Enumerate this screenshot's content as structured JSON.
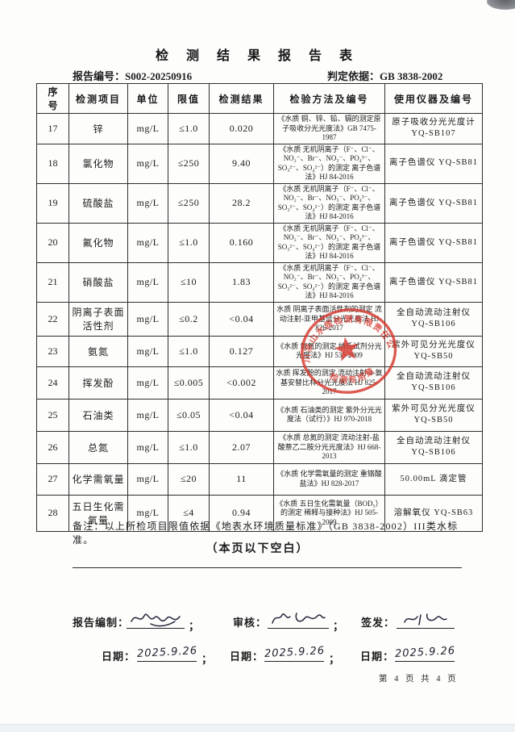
{
  "page": {
    "title": "检 测 结 果 报 告 表",
    "report_no_label": "报告编号：",
    "report_no": "S002-20250916",
    "basis_label": "判定依据：",
    "basis": "GB 3838-2002",
    "note": "备注：以上所检项目限值依据《地表水环境质量标准》（GB 3838-2002）III类水标准。",
    "blank_note": "（本页以下空白）",
    "footer_page": "第 4 页 共 4 页"
  },
  "table": {
    "headers": [
      "序号",
      "检测项目",
      "单位",
      "限值",
      "检测结果",
      "检验方法及编号",
      "使用仪器及编号"
    ],
    "rows": [
      {
        "no": "17",
        "item": "锌",
        "unit": "mg/L",
        "limit": "≤1.0",
        "result": "0.020",
        "method": "《水质 铜、锌、铅、镉的测定原子吸收分光光度法》GB 7475-1987",
        "instrument": "原子吸收分光光度计 YQ-SB107"
      },
      {
        "no": "18",
        "item": "氯化物",
        "unit": "mg/L",
        "limit": "≤250",
        "result": "9.40",
        "method": "《水质 无机阴离子（F⁻、Cl⁻、NO₂⁻、Br⁻、NO₃⁻、PO₄³⁻、SO₃²⁻、SO₄²⁻）的测定 离子色谱法》HJ 84-2016",
        "instrument": "离子色谱仪 YQ-SB81"
      },
      {
        "no": "19",
        "item": "硫酸盐",
        "unit": "mg/L",
        "limit": "≤250",
        "result": "28.2",
        "method": "《水质 无机阴离子（F⁻、Cl⁻、NO₂⁻、Br⁻、NO₃⁻、PO₄³⁻、SO₃²⁻、SO₄²⁻）的测定 离子色谱法》HJ 84-2016",
        "instrument": "离子色谱仪 YQ-SB81"
      },
      {
        "no": "20",
        "item": "氟化物",
        "unit": "mg/L",
        "limit": "≤1.0",
        "result": "0.160",
        "method": "《水质 无机阴离子（F⁻、Cl⁻、NO₂⁻、Br⁻、NO₃⁻、PO₄³⁻、SO₃²⁻、SO₄²⁻）的测定 离子色谱法》HJ 84-2016",
        "instrument": "离子色谱仪 YQ-SB81"
      },
      {
        "no": "21",
        "item": "硝酸盐",
        "unit": "mg/L",
        "limit": "≤10",
        "result": "1.83",
        "method": "《水质 无机阴离子（F⁻、Cl⁻、NO₂⁻、Br⁻、NO₃⁻、PO₄³⁻、SO₃²⁻、SO₄²⁻）的测定 离子色谱法》HJ 84-2016",
        "instrument": "离子色谱仪 YQ-SB81"
      },
      {
        "no": "22",
        "item": "阴离子表面活性剂",
        "unit": "mg/L",
        "limit": "≤0.2",
        "result": "<0.04",
        "method": "水质 阴离子表面活性剂的测定 流动注射-亚甲基蓝分光光度法 HJ 826-2017",
        "instrument": "全自动流动注射仪 YQ-SB106"
      },
      {
        "no": "23",
        "item": "氨氮",
        "unit": "mg/L",
        "limit": "≤1.0",
        "result": "0.127",
        "method": "《水质 氨氮的测定 纳氏试剂分光光度法》HJ 535-2009",
        "instrument": "紫外可见分光光度仪 YQ-SB50"
      },
      {
        "no": "24",
        "item": "挥发酚",
        "unit": "mg/L",
        "limit": "≤0.005",
        "result": "<0.002",
        "method": "水质 挥发酚的测定 流动注射-4-氨基安替比林分光光度法 HJ 825-2017",
        "instrument": "全自动流动注射仪 YQ-SB106"
      },
      {
        "no": "25",
        "item": "石油类",
        "unit": "mg/L",
        "limit": "≤0.05",
        "result": "<0.04",
        "method": "《水质 石油类的测定 紫外分光光度法（试行）》HJ 970-2018",
        "instrument": "紫外可见分光光度仪 YQ-SB50"
      },
      {
        "no": "26",
        "item": "总氮",
        "unit": "mg/L",
        "limit": "≤1.0",
        "result": "2.07",
        "method": "《水质 总氮的测定 流动注射-盐酸萘乙二胺分光光度法》HJ 668-2013",
        "instrument": "全自动流动注射仪 YQ-SB106"
      },
      {
        "no": "27",
        "item": "化学需氧量",
        "unit": "mg/L",
        "limit": "≤20",
        "result": "11",
        "method": "《水质 化学需氧量的测定 重铬酸盐法》HJ 828-2017",
        "instrument": "50.00mL 滴定管"
      },
      {
        "no": "28",
        "item": "五日生化需氧量",
        "unit": "mg/L",
        "limit": "≤4",
        "result": "0.94",
        "method": "《水质 五日生化需氧量（BOD₅）的测定 稀释与接种法》HJ 505-2009",
        "instrument": "溶解氧仪 YQ-SB63"
      }
    ]
  },
  "signatures": {
    "prepared_label": "报告编制：",
    "reviewed_label": "审核：",
    "issued_label": "签发：",
    "date_label": "日期：",
    "separator": "；",
    "dates": [
      "2025.9.26",
      "2025.9.26",
      "2025.9.26"
    ]
  },
  "stamp": {
    "top_text": "四川凉山水质检测有限责任公司",
    "bottom_text": "检测专用章",
    "color": "#d5382e"
  }
}
